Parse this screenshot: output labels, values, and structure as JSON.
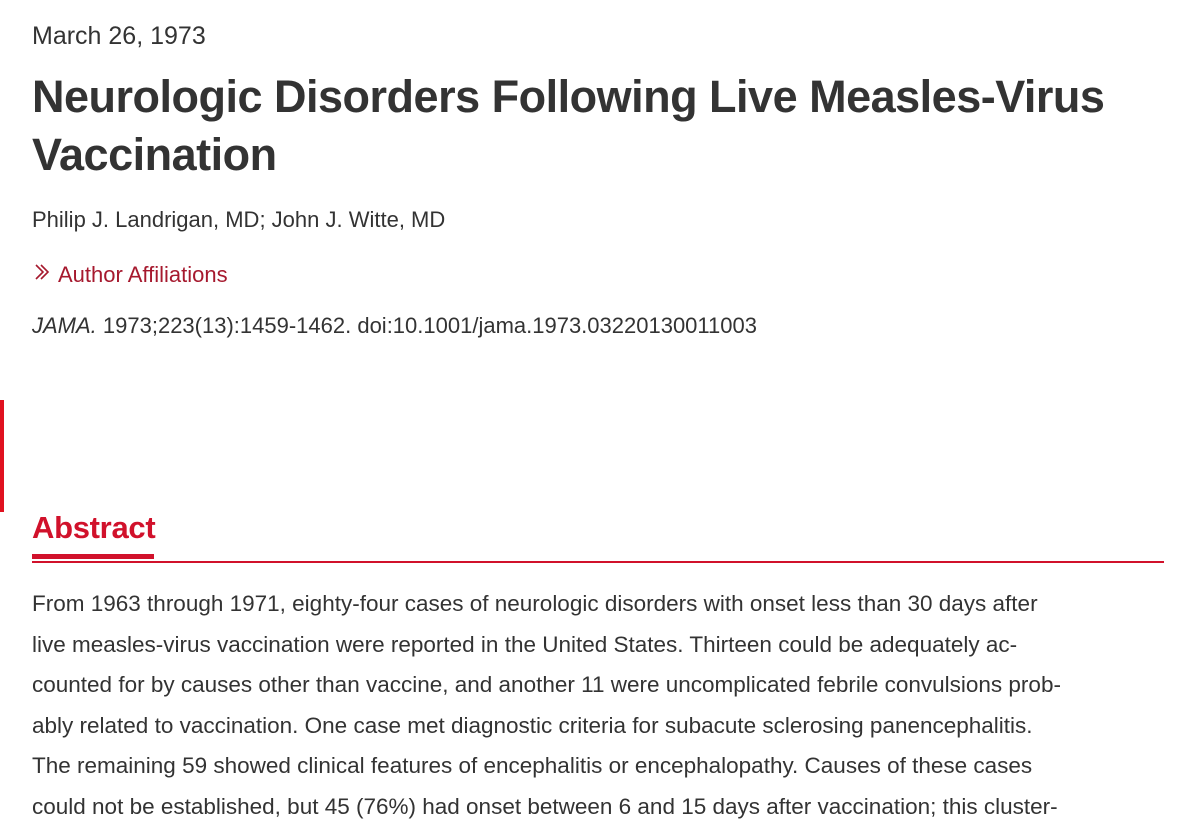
{
  "article": {
    "date": "March 26, 1973",
    "title": "Neurologic Disorders Following Live Measles-Virus Vaccination",
    "authors": "Philip J. Landrigan, MD; John J. Witte, MD",
    "affiliations_link": "Author Affiliations",
    "citation": {
      "journal": "JAMA.",
      "details": " 1973;223(13):1459-1462. doi:10.1001/jama.1973.03220130011003"
    }
  },
  "abstract": {
    "heading": "Abstract",
    "lines": [
      "From 1963 through 1971, eighty-four cases of neurologic disorders with onset less than 30 days after",
      "live measles-virus vaccination were reported in the United States. Thirteen could be adequately ac-",
      "counted for by causes other than vaccine, and another 11 were uncomplicated febrile convulsions prob-",
      "ably related to vaccination. One case met diagnostic criteria for subacute sclerosing panencephalitis.",
      "The remaining 59 showed clinical features of encephalitis or encephalopathy. Causes of these cases",
      "could not be established, but 45 (76%) had onset between 6 and 15 days after vaccination; this cluster-"
    ]
  },
  "colors": {
    "accent": "#d1112b",
    "link": "#a6192e",
    "text": "#333333"
  },
  "icons": {
    "affiliations": "chevron-right-double-icon"
  }
}
